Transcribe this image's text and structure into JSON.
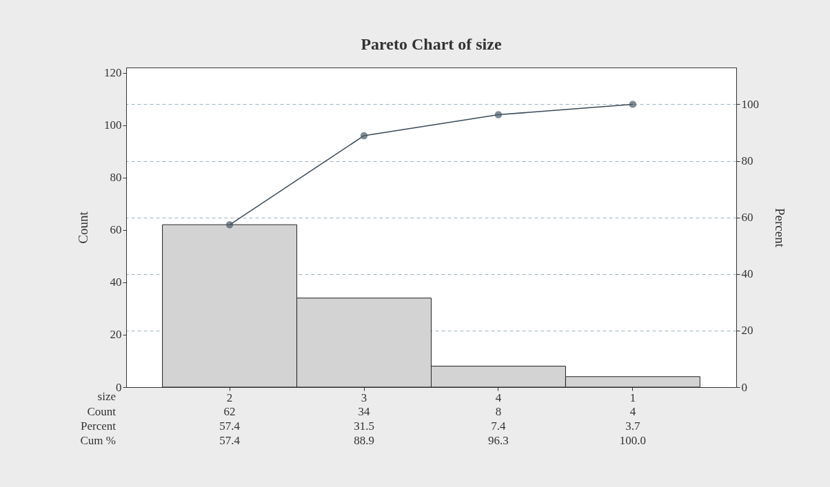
{
  "chart_data": {
    "type": "bar",
    "title": "Pareto Chart of size",
    "xlabel": "size",
    "ylabel": "Count",
    "y2label": "Percent",
    "categories": [
      "2",
      "3",
      "4",
      "1"
    ],
    "series": [
      {
        "color": "#d3d3d3",
        "values": [
          62,
          34,
          8,
          4
        ],
        "value_labels": [
          "62",
          "34",
          "8",
          "4"
        ]
      },
      {
        "type": "line",
        "axis": "y2",
        "color": "#3a4a58",
        "values": [
          57.4,
          88.9,
          96.3,
          100.0
        ],
        "value_labels": [
          "57.4",
          "88.9",
          "96.3",
          "100.0"
        ]
      }
    ],
    "annotations": [
      "Count",
      "Percent",
      "57.4",
      "31.5",
      "7.4",
      "3.7",
      "Cum %"
    ],
    "ylim": [
      0,
      122
    ],
    "yticks": [
      0,
      20,
      40,
      60,
      80,
      100,
      120
    ],
    "y2lim": [
      0,
      113
    ],
    "y2ticks": [
      0,
      20,
      40,
      60,
      80,
      100
    ],
    "grid": "y2",
    "marker": "circle",
    "line_style": "solid"
  }
}
